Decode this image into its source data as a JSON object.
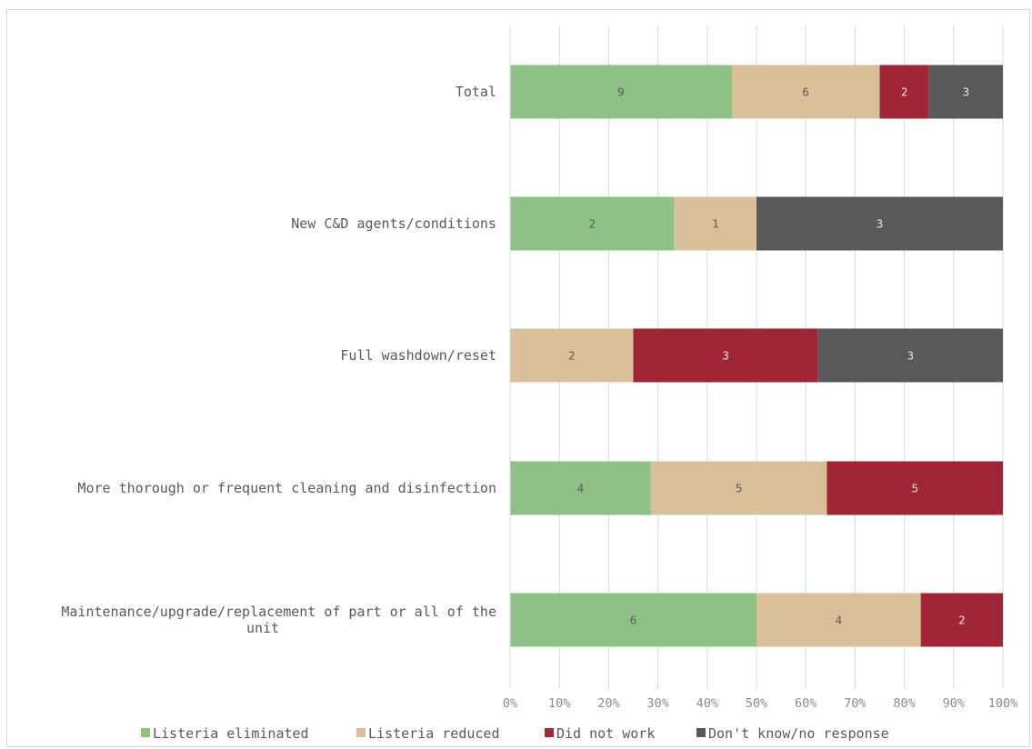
{
  "chart_data": {
    "type": "bar",
    "orientation": "horizontal",
    "stacking": "percent",
    "title": "",
    "xlabel": "",
    "ylabel": "",
    "categories": [
      "Total",
      "New C&D agents/conditions",
      "Full washdown/reset",
      "More thorough or frequent cleaning and disinfection",
      "Maintenance/upgrade/replacement of part or all of the unit"
    ],
    "category_lines": [
      [
        "Total"
      ],
      [
        "New C&D agents/conditions"
      ],
      [
        "Full washdown/reset"
      ],
      [
        "More thorough or frequent cleaning and disinfection"
      ],
      [
        "Maintenance/upgrade/replacement of part or all of the",
        "unit"
      ]
    ],
    "series": [
      {
        "name": "Listeria eliminated",
        "color": "#8fc086",
        "values": [
          9,
          2,
          0,
          4,
          6
        ]
      },
      {
        "name": "Listeria reduced",
        "color": "#d9c09a",
        "values": [
          6,
          1,
          2,
          5,
          4
        ]
      },
      {
        "name": "Did not work",
        "color": "#a02637",
        "values": [
          2,
          0,
          3,
          5,
          2
        ]
      },
      {
        "name": "Don't know/no response",
        "color": "#595959",
        "values": [
          3,
          3,
          3,
          0,
          0
        ]
      }
    ],
    "xlim": [
      0,
      100
    ],
    "x_ticks": [
      "0%",
      "10%",
      "20%",
      "30%",
      "40%",
      "50%",
      "60%",
      "70%",
      "80%",
      "90%",
      "100%"
    ],
    "grid": true,
    "legend_position": "bottom"
  }
}
